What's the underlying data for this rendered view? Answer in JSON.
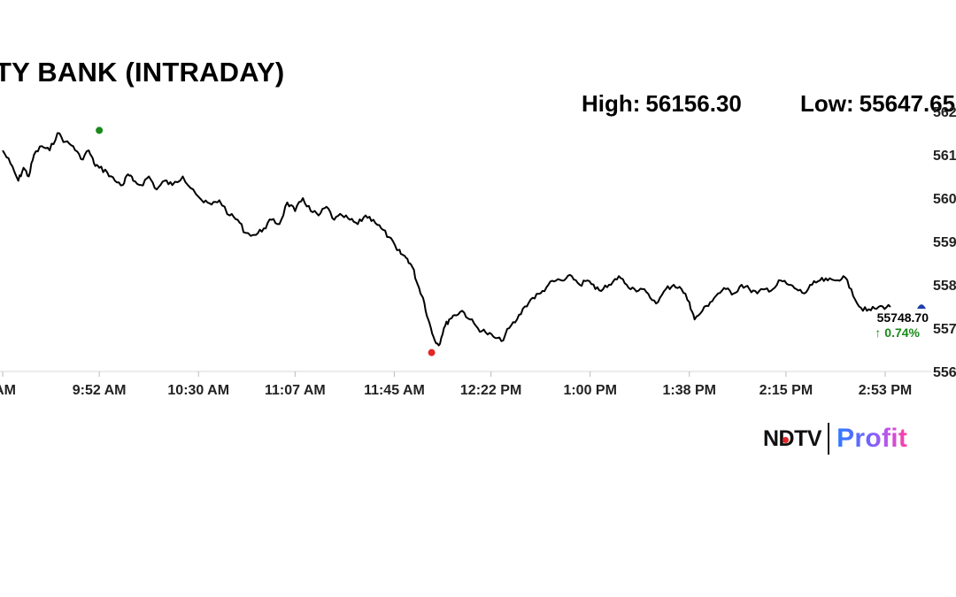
{
  "title": "TY BANK (INTRADAY)",
  "stats": {
    "high_label": "High:",
    "high_value": "56156.30",
    "low_label": "Low:",
    "low_value": "55647.65"
  },
  "last": {
    "price": "55748.70",
    "change": "↑ 0.74%"
  },
  "logo": {
    "brand_left": "NDTV",
    "brand_right": "Profit"
  },
  "colors": {
    "line": "#000000",
    "high_marker": "#1a8a1a",
    "low_marker": "#e32626",
    "last_marker": "#1f3fa8",
    "positive": "#1a8a1a",
    "axis": "#d9d9d9"
  },
  "chart_data": {
    "type": "line",
    "title": "TY BANK (INTRADAY)",
    "xlabel": "",
    "ylabel": "",
    "x_ticks": [
      "AM",
      "9:52 AM",
      "10:30 AM",
      "11:07 AM",
      "11:45 AM",
      "12:22 PM",
      "1:00 PM",
      "1:38 PM",
      "2:15 PM",
      "2:53 PM"
    ],
    "x_tick_minutes": [
      555,
      592,
      630,
      667,
      705,
      742,
      780,
      818,
      855,
      893
    ],
    "y_ticks": [
      "562",
      "561",
      "560",
      "559",
      "558",
      "557",
      "556"
    ],
    "y_tick_values": [
      56200,
      56100,
      56000,
      55900,
      55800,
      55700,
      55600
    ],
    "ylim": [
      55600,
      56200
    ],
    "xlim_minutes": [
      555,
      916
    ],
    "grid": false,
    "legend": "none",
    "series": [
      {
        "minutes": [
          555,
          558,
          561,
          563,
          565,
          567,
          570,
          573,
          576,
          579,
          582,
          585,
          588,
          590,
          592,
          595,
          598,
          601,
          603,
          605,
          608,
          611,
          614,
          617,
          620,
          624,
          628,
          632,
          635,
          638,
          642,
          645,
          648,
          652,
          655,
          658,
          661,
          664,
          667,
          670,
          673,
          676,
          679,
          682,
          685,
          688,
          691,
          694,
          697,
          700,
          703,
          706,
          708,
          710,
          712,
          714,
          716,
          718,
          720,
          722,
          724,
          726,
          728,
          731,
          734,
          737,
          740,
          743,
          746,
          749,
          752,
          755,
          758,
          761,
          764,
          767,
          770,
          773,
          776,
          779,
          782,
          785,
          788,
          791,
          794,
          797,
          800,
          803,
          806,
          809,
          812,
          815,
          818,
          820,
          823,
          826,
          829,
          832,
          835,
          838,
          841,
          844,
          847,
          850,
          853,
          856,
          859,
          862,
          865,
          868,
          871,
          874,
          877,
          880,
          883,
          886,
          889,
          892,
          895,
          898,
          901
        ],
        "values": [
          56110,
          56080,
          56040,
          56070,
          56050,
          56100,
          56120,
          56110,
          56150,
          56130,
          56120,
          56090,
          56110,
          56080,
          56070,
          56060,
          56040,
          56030,
          56055,
          56040,
          56030,
          56050,
          56020,
          56040,
          56030,
          56050,
          56020,
          55990,
          55985,
          55995,
          55960,
          55950,
          55920,
          55915,
          55930,
          55950,
          55940,
          55990,
          55970,
          56000,
          55970,
          55960,
          55980,
          55950,
          55960,
          55950,
          55940,
          55960,
          55950,
          55930,
          55910,
          55880,
          55870,
          55860,
          55840,
          55800,
          55770,
          55720,
          55680,
          55660,
          55700,
          55720,
          55730,
          55740,
          55720,
          55700,
          55690,
          55680,
          55670,
          55700,
          55720,
          55750,
          55770,
          55780,
          55800,
          55810,
          55810,
          55820,
          55800,
          55810,
          55790,
          55790,
          55800,
          55820,
          55800,
          55790,
          55790,
          55770,
          55760,
          55790,
          55800,
          55790,
          55760,
          55720,
          55740,
          55760,
          55780,
          55790,
          55780,
          55800,
          55790,
          55780,
          55790,
          55790,
          55810,
          55800,
          55790,
          55780,
          55800,
          55810,
          55810,
          55810,
          55820,
          55790,
          55750,
          55740,
          55745,
          55750,
          55748.7
        ]
      }
    ],
    "high_point": {
      "minute": 592,
      "value": 56156.3
    },
    "low_point": {
      "minute": 722,
      "value": 55647.65
    },
    "last_point": {
      "minute": 901,
      "value": 55748.7
    }
  }
}
